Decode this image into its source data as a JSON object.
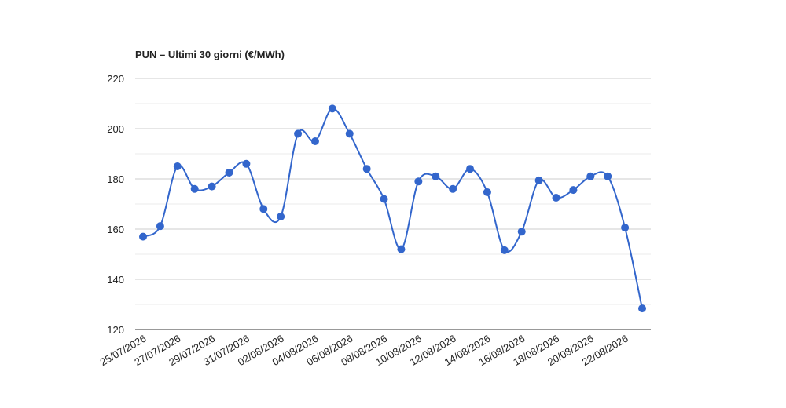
{
  "chart_data": {
    "type": "line",
    "title": "PUN – Ultimi 30 giorni (€/MWh)",
    "categories": [
      "25/07/2026",
      null,
      "27/07/2026",
      null,
      "29/07/2026",
      null,
      "31/07/2026",
      null,
      "02/08/2026",
      null,
      "04/08/2026",
      null,
      "06/08/2026",
      null,
      "08/08/2026",
      null,
      "10/08/2026",
      null,
      "12/08/2026",
      null,
      "14/08/2026",
      null,
      "16/08/2026",
      null,
      "18/08/2026",
      null,
      "20/08/2026",
      null,
      "22/08/2026",
      null
    ],
    "values": [
      157,
      161.2,
      185,
      176,
      177,
      182.5,
      186,
      168,
      165,
      198,
      195,
      208,
      198,
      184,
      172,
      152,
      179,
      181,
      176,
      184,
      174.7,
      151.6,
      159,
      179.4,
      172.5,
      175.6,
      181,
      181,
      160.6,
      128.4
    ],
    "color": "#3366cc",
    "ylim": [
      120,
      220
    ],
    "yticks": [
      120,
      140,
      160,
      180,
      200,
      220
    ],
    "minor_yticks": [
      130,
      150,
      170,
      190,
      210
    ],
    "grid": true,
    "smooth": true
  }
}
